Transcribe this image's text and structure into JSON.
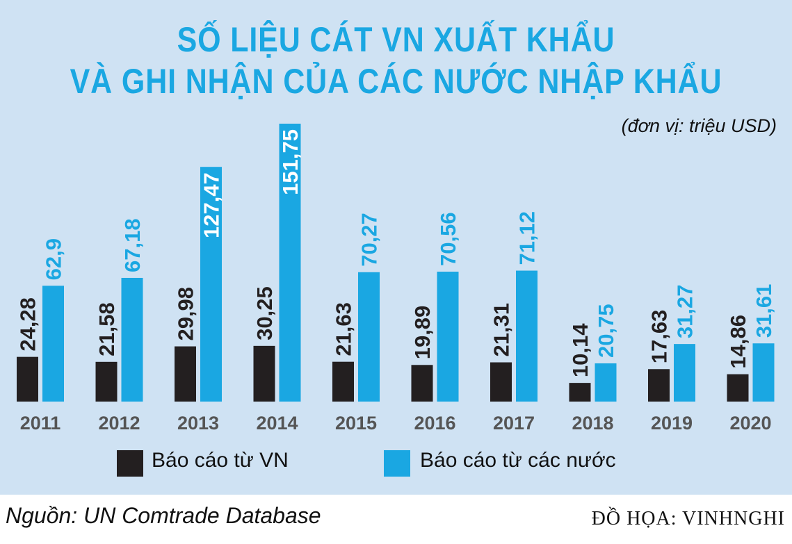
{
  "title_line1": "SỐ LIỆU CÁT VN XUẤT KHẨU",
  "title_line2": "VÀ GHI NHẬN CỦA CÁC NƯỚC NHẬP KHẨU",
  "unit_note": "(đơn vị: triệu USD)",
  "source_note": "Nguồn: UN Comtrade Database",
  "credit_note": "ĐỒ HỌA: VINHNGHI",
  "colors": {
    "background": "#cfe2f3",
    "vn": "#231f20",
    "other": "#1aa7e2",
    "title": "#1aa7e2",
    "year_label": "#555555"
  },
  "chart_data": {
    "type": "bar",
    "title": "SỐ LIỆU CÁT VN XUẤT KHẨU VÀ GHI NHẬN CỦA CÁC NƯỚC NHẬP KHẨU",
    "categories": [
      "2011",
      "2012",
      "2013",
      "2014",
      "2015",
      "2016",
      "2017",
      "2018",
      "2019",
      "2020"
    ],
    "series": [
      {
        "name": "Báo cáo từ VN",
        "color": "#231f20",
        "values": [
          24.28,
          21.58,
          29.98,
          30.25,
          21.63,
          19.89,
          21.31,
          10.14,
          17.63,
          14.86
        ],
        "labels": [
          "24,28",
          "21,58",
          "29,98",
          "30,25",
          "21,63",
          "19,89",
          "21,31",
          "10,14",
          "17,63",
          "14,86"
        ]
      },
      {
        "name": "Báo cáo từ các nước",
        "color": "#1aa7e2",
        "values": [
          62.9,
          67.18,
          127.47,
          151.75,
          70.27,
          70.56,
          71.12,
          20.75,
          31.27,
          31.61
        ],
        "labels": [
          "62,9",
          "67,18",
          "127,47",
          "151,75",
          "70,27",
          "70,56",
          "71,12",
          "20,75",
          "31,27",
          "31,61"
        ]
      }
    ],
    "ylim": [
      0,
      155
    ],
    "legend": "bottom",
    "grid": false
  }
}
